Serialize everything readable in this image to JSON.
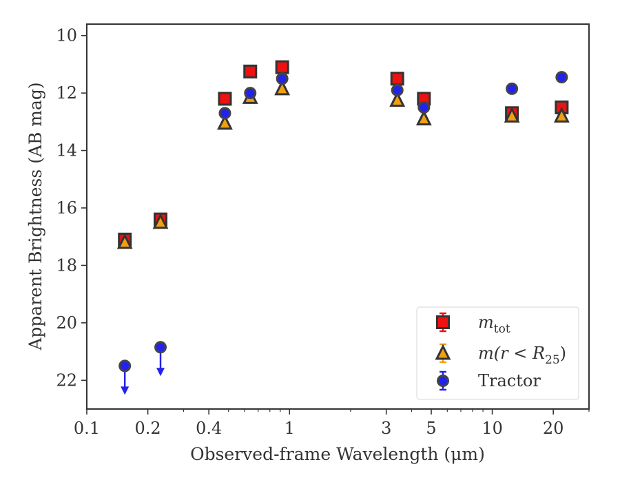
{
  "chart_data": {
    "type": "scatter",
    "title": "",
    "xlabel": "Observed-frame Wavelength (μm)",
    "ylabel": "Apparent Brightness (AB mag)",
    "xscale": "log",
    "xlim": [
      0.1,
      30
    ],
    "ylim": [
      23,
      9.6
    ],
    "y_inverted": true,
    "grid": false,
    "legend_position": "lower-right",
    "x_tick_labels": [
      "0.1",
      "0.2",
      "0.4",
      "1",
      "3",
      "5",
      "10",
      "20"
    ],
    "y_tick_labels": [
      "10",
      "12",
      "14",
      "16",
      "18",
      "20",
      "22"
    ],
    "series": [
      {
        "name": "m_tot",
        "legend_main": "m",
        "legend_sub": "tot",
        "marker": "square",
        "color": "#ee1111",
        "points": [
          {
            "x": 0.154,
            "y": 17.1
          },
          {
            "x": 0.231,
            "y": 16.4
          },
          {
            "x": 0.48,
            "y": 12.2
          },
          {
            "x": 0.64,
            "y": 11.25
          },
          {
            "x": 0.92,
            "y": 11.1
          },
          {
            "x": 3.4,
            "y": 11.5
          },
          {
            "x": 4.6,
            "y": 12.2
          },
          {
            "x": 12.5,
            "y": 12.7
          },
          {
            "x": 22.0,
            "y": 12.5
          }
        ]
      },
      {
        "name": "m(r < R25)",
        "legend_main": "m(r < R",
        "legend_sub": "25",
        "legend_tail": ")",
        "marker": "triangle",
        "color": "#f0a010",
        "points": [
          {
            "x": 0.154,
            "y": 17.2
          },
          {
            "x": 0.231,
            "y": 16.5
          },
          {
            "x": 0.48,
            "y": 13.05
          },
          {
            "x": 0.64,
            "y": 12.15
          },
          {
            "x": 0.92,
            "y": 11.85
          },
          {
            "x": 3.4,
            "y": 12.25
          },
          {
            "x": 4.6,
            "y": 12.9
          },
          {
            "x": 12.5,
            "y": 12.8
          },
          {
            "x": 22.0,
            "y": 12.8
          }
        ]
      },
      {
        "name": "Tractor",
        "legend_main": "Tractor",
        "marker": "circle",
        "color": "#2222ee",
        "points": [
          {
            "x": 0.154,
            "y": 21.5,
            "upper_limit": true
          },
          {
            "x": 0.231,
            "y": 20.85,
            "upper_limit": true
          },
          {
            "x": 0.48,
            "y": 12.7
          },
          {
            "x": 0.64,
            "y": 12.0
          },
          {
            "x": 0.92,
            "y": 11.5
          },
          {
            "x": 3.4,
            "y": 11.9
          },
          {
            "x": 4.6,
            "y": 12.5
          },
          {
            "x": 12.5,
            "y": 11.85
          },
          {
            "x": 22.0,
            "y": 11.45
          }
        ]
      }
    ]
  }
}
